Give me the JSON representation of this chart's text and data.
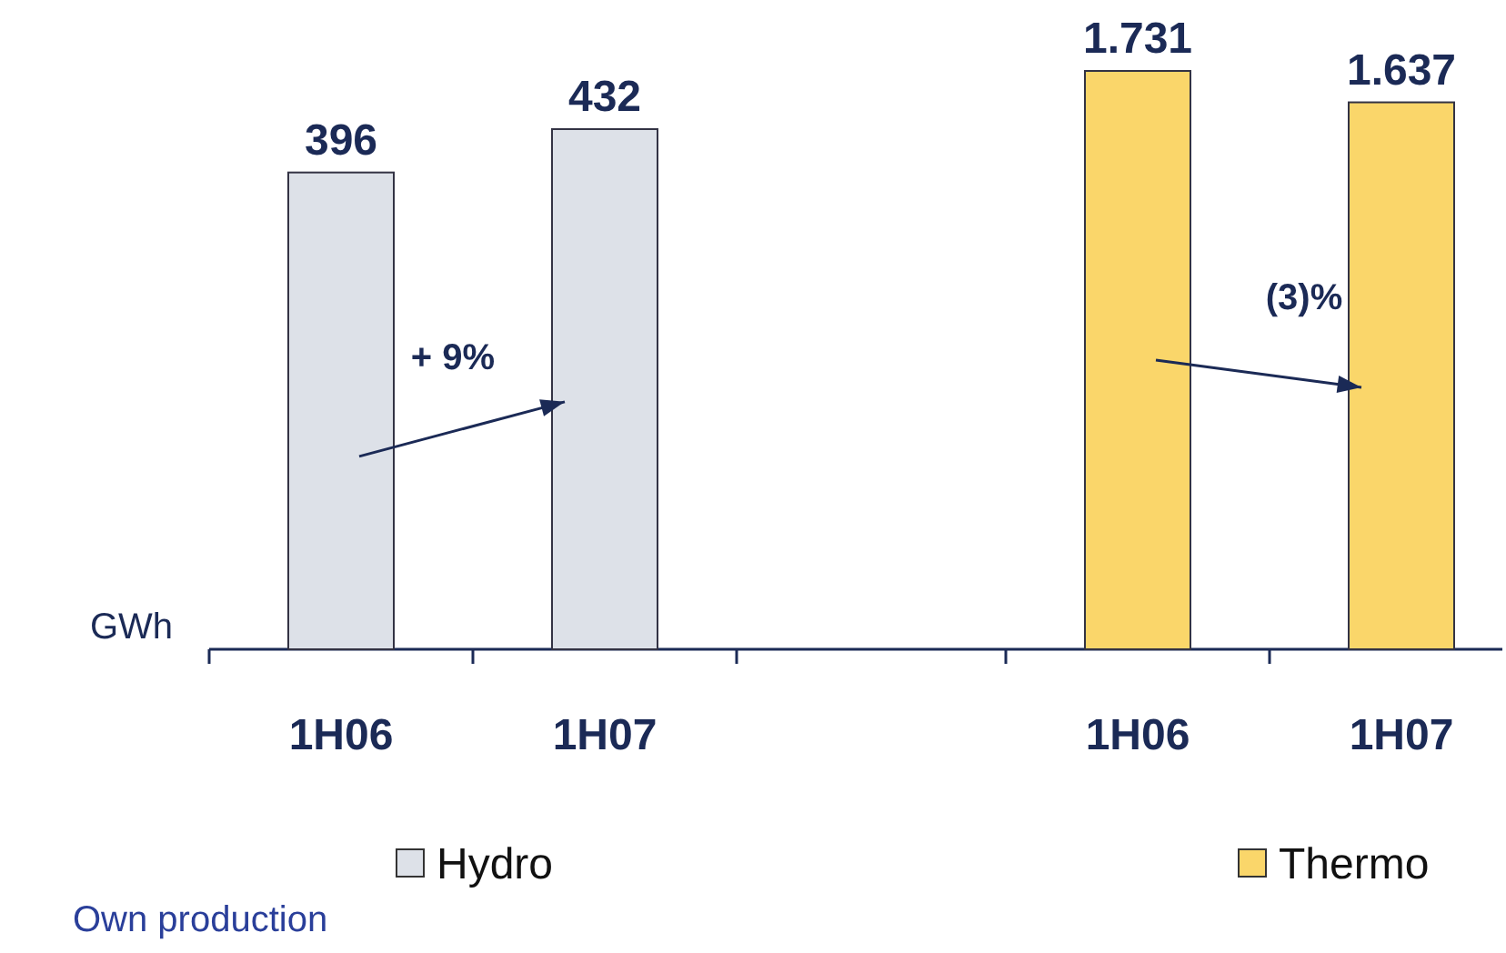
{
  "chart_data": [
    {
      "type": "bar",
      "ylabel": "GWh",
      "categories": [
        "1H06",
        "1H07"
      ],
      "series": [
        {
          "name": "Hydro",
          "color": "#dde1e8",
          "values": [
            396,
            432
          ],
          "value_labels": [
            "396",
            "432"
          ]
        }
      ],
      "annotations": [
        "+ 9%",
        "Own production"
      ],
      "legend": "bottom"
    },
    {
      "type": "bar",
      "categories": [
        "1H06",
        "1H07"
      ],
      "series": [
        {
          "name": "Thermo",
          "color": "#fad66a",
          "values": [
            1731,
            1637
          ],
          "value_labels": [
            "1.731",
            "1.637"
          ]
        }
      ],
      "annotations": [
        "(3)%"
      ],
      "legend": "bottom"
    }
  ]
}
